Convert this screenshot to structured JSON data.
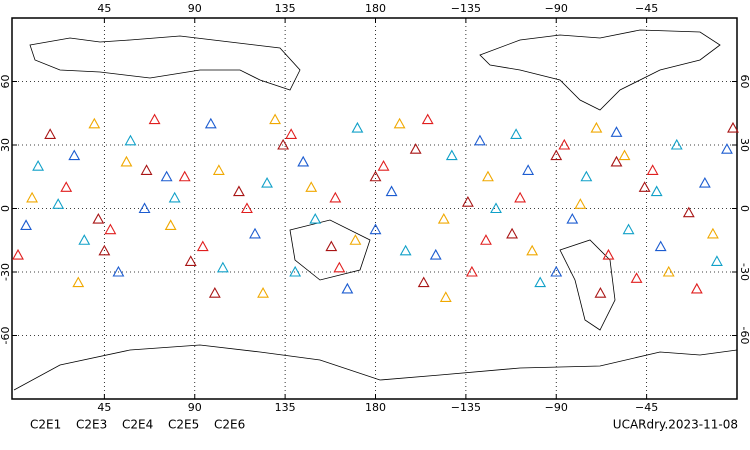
{
  "chart_data": {
    "type": "scatter",
    "xlim": [
      0,
      360
    ],
    "ylim": [
      -90,
      90
    ],
    "xticks": [
      45,
      90,
      135,
      180,
      {
        "value": 225,
        "label": "−135"
      },
      {
        "value": 270,
        "label": "−90"
      },
      {
        "value": 315,
        "label": "−45"
      }
    ],
    "yticks": [
      -60,
      -30,
      0,
      30,
      60
    ],
    "grid": true,
    "annotation": "UCARdry.2023-11-08",
    "series": [
      {
        "name": "C2E1",
        "color": "#10a0c8",
        "x": [
          12,
          35,
          58,
          80,
          104,
          126,
          150,
          171,
          195,
          218,
          240,
          262,
          285,
          306,
          330,
          350,
          22,
          140,
          250,
          320
        ],
        "y": [
          20,
          -15,
          32,
          5,
          -28,
          12,
          -5,
          38,
          -20,
          25,
          0,
          -35,
          15,
          -10,
          30,
          -25,
          2,
          -30,
          35,
          8
        ]
      },
      {
        "name": "C2E3",
        "color": "#1c5cd0",
        "x": [
          6,
          30,
          52,
          76,
          98,
          120,
          144,
          166,
          188,
          210,
          232,
          256,
          278,
          300,
          322,
          344,
          65,
          180,
          270,
          355
        ],
        "y": [
          -8,
          25,
          -30,
          15,
          40,
          -12,
          22,
          -38,
          8,
          -22,
          32,
          18,
          -5,
          36,
          -18,
          12,
          0,
          -10,
          -30,
          28
        ]
      },
      {
        "name": "C2E4",
        "color": "#a81414",
        "x": [
          18,
          42,
          66,
          88,
          112,
          134,
          158,
          180,
          204,
          226,
          248,
          270,
          292,
          314,
          336,
          358,
          100,
          200,
          300,
          45
        ],
        "y": [
          35,
          -5,
          18,
          -25,
          8,
          30,
          -18,
          15,
          -35,
          3,
          -12,
          25,
          -40,
          10,
          -2,
          38,
          -40,
          28,
          22,
          -20
        ]
      },
      {
        "name": "C2E5",
        "color": "#e01e1e",
        "x": [
          2,
          26,
          48,
          70,
          94,
          116,
          138,
          162,
          184,
          206,
          228,
          252,
          274,
          296,
          318,
          340,
          85,
          160,
          235,
          310
        ],
        "y": [
          -22,
          10,
          -10,
          42,
          -18,
          0,
          35,
          -28,
          20,
          42,
          -30,
          5,
          30,
          -22,
          18,
          -38,
          15,
          5,
          -15,
          -33
        ]
      },
      {
        "name": "C2E6",
        "color": "#f0a800",
        "x": [
          9,
          32,
          56,
          78,
          102,
          124,
          148,
          170,
          192,
          214,
          236,
          258,
          282,
          304,
          326,
          348,
          130,
          215,
          290,
          40
        ],
        "y": [
          5,
          -35,
          22,
          -8,
          18,
          -40,
          10,
          -15,
          40,
          -5,
          15,
          -20,
          2,
          25,
          -30,
          -12,
          42,
          -42,
          38,
          40
        ]
      }
    ]
  }
}
